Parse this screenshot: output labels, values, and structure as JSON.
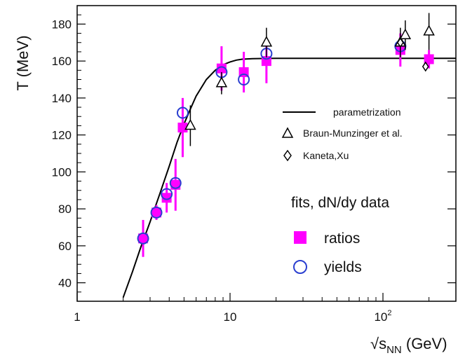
{
  "chart_data": {
    "type": "scatter",
    "title": "",
    "xlabel": "√s",
    "xlabel_sub": "NN",
    "xlabel_unit": " (GeV)",
    "ylabel": "T (MeV)",
    "xscale": "log",
    "xlim": [
      1,
      300
    ],
    "ylim": [
      30,
      190
    ],
    "x_ticks": [
      {
        "value": 1,
        "label": "1",
        "exp": ""
      },
      {
        "value": 10,
        "label": "10",
        "exp": ""
      },
      {
        "value": 100,
        "label": "10",
        "exp": "2"
      }
    ],
    "y_ticks": [
      40,
      60,
      80,
      100,
      120,
      140,
      160,
      180
    ],
    "grid": false,
    "legend_position": "right",
    "legend": {
      "parametrization": "parametrization",
      "braun": "Braun-Munzinger et al.",
      "kaneta": "Kaneta,Xu",
      "group_title": "fits, dN/dy data",
      "ratios": "ratios",
      "yields": "yields"
    },
    "colors": {
      "magenta": "#ff00ff",
      "blue": "#2b3fd0",
      "black": "#000000"
    },
    "series": [
      {
        "name": "parametrization",
        "kind": "line",
        "x": [
          2.0,
          2.3,
          2.6,
          3.0,
          3.5,
          4.0,
          4.5,
          5.0,
          5.5,
          6.0,
          7.0,
          8.0,
          9.0,
          10.0,
          11.0,
          12.0,
          14.0,
          20.0,
          50.0,
          100.0,
          300.0
        ],
        "y": [
          32,
          46,
          59,
          73,
          89,
          103,
          116,
          126,
          134,
          141,
          150,
          155,
          158,
          159.5,
          160.5,
          161,
          161.3,
          161.5,
          161.5,
          161.5,
          161.5
        ]
      },
      {
        "name": "ratios",
        "kind": "square",
        "points": [
          {
            "x": 2.7,
            "y": 64,
            "err": 10
          },
          {
            "x": 3.3,
            "y": 78,
            "err": 4
          },
          {
            "x": 3.85,
            "y": 86,
            "err": 8
          },
          {
            "x": 4.4,
            "y": 93,
            "err": 14
          },
          {
            "x": 4.9,
            "y": 124,
            "err": 16
          },
          {
            "x": 8.8,
            "y": 156,
            "err": 12
          },
          {
            "x": 12.3,
            "y": 154,
            "err": 11
          },
          {
            "x": 17.3,
            "y": 160,
            "err": 12
          },
          {
            "x": 130,
            "y": 166,
            "err": 9
          },
          {
            "x": 200,
            "y": 161,
            "err": 5
          }
        ]
      },
      {
        "name": "yields",
        "kind": "circle",
        "points": [
          {
            "x": 2.7,
            "y": 64
          },
          {
            "x": 3.3,
            "y": 78
          },
          {
            "x": 3.85,
            "y": 88
          },
          {
            "x": 4.4,
            "y": 94
          },
          {
            "x": 4.9,
            "y": 132
          },
          {
            "x": 8.8,
            "y": 154
          },
          {
            "x": 12.3,
            "y": 150
          },
          {
            "x": 17.3,
            "y": 164
          },
          {
            "x": 130,
            "y": 168
          }
        ]
      },
      {
        "name": "Braun-Munzinger et al.",
        "kind": "triangle",
        "points": [
          {
            "x": 5.5,
            "y": 125,
            "err": 11
          },
          {
            "x": 8.8,
            "y": 148,
            "err": 6
          },
          {
            "x": 17.3,
            "y": 170,
            "err": 8
          },
          {
            "x": 130,
            "y": 170,
            "err": 8
          },
          {
            "x": 140,
            "y": 174,
            "err": 8
          },
          {
            "x": 200,
            "y": 176,
            "err": 10
          }
        ]
      },
      {
        "name": "Kaneta,Xu",
        "kind": "diamond",
        "points": [
          {
            "x": 130,
            "y": 170,
            "err": 4
          },
          {
            "x": 190,
            "y": 157,
            "err": 2
          }
        ]
      }
    ]
  }
}
